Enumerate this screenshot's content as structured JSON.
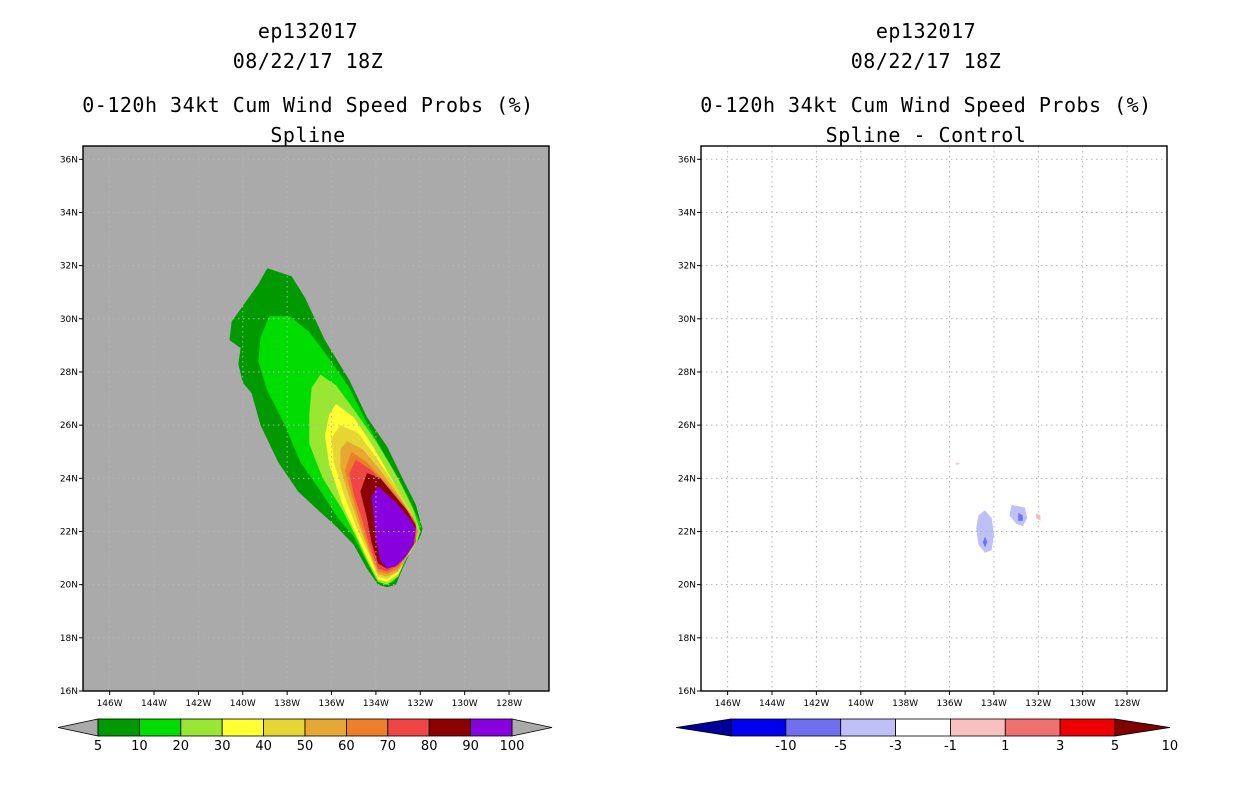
{
  "chart_data": [
    {
      "type": "contour",
      "title_lines": [
        "ep132017",
        "08/22/17 18Z",
        "0-120h 34kt Cum Wind Speed Probs (%)",
        "Spline"
      ],
      "x_ticks": [
        "146W",
        "144W",
        "142W",
        "140W",
        "138W",
        "136W",
        "134W",
        "132W",
        "130W",
        "128W"
      ],
      "x_tick_values": [
        -146,
        -144,
        -142,
        -140,
        -138,
        -136,
        -134,
        -132,
        -130,
        -128
      ],
      "y_ticks": [
        "16N",
        "18N",
        "20N",
        "22N",
        "24N",
        "26N",
        "28N",
        "30N",
        "32N",
        "34N",
        "36N"
      ],
      "y_tick_values": [
        16,
        18,
        20,
        22,
        24,
        26,
        28,
        30,
        32,
        34,
        36
      ],
      "lon_range": [
        -147.2,
        -126.2
      ],
      "lat_range": [
        16.0,
        36.5
      ],
      "background_color": "#aaaaaa",
      "grid": true,
      "colorbar": {
        "labels": [
          "5",
          "10",
          "20",
          "30",
          "40",
          "50",
          "60",
          "70",
          "80",
          "90",
          "100"
        ],
        "colors": [
          "#009900",
          "#00dd00",
          "#99e633",
          "#ffff33",
          "#e6d633",
          "#e6a833",
          "#ed7f2a",
          "#f04545",
          "#8b0000",
          "#8800dd"
        ]
      },
      "contours": [
        {
          "level": 5,
          "color": "#009900",
          "points": [
            [
              -138.9,
              31.9
            ],
            [
              -137.8,
              31.6
            ],
            [
              -137.2,
              30.8
            ],
            [
              -136.3,
              29.2
            ],
            [
              -135.2,
              27.7
            ],
            [
              -134.4,
              26.3
            ],
            [
              -133.5,
              25.2
            ],
            [
              -132.8,
              24.0
            ],
            [
              -132.2,
              23.0
            ],
            [
              -131.9,
              22.1
            ],
            [
              -132.0,
              21.8
            ],
            [
              -132.4,
              21.3
            ],
            [
              -132.8,
              20.6
            ],
            [
              -133.1,
              20.0
            ],
            [
              -133.5,
              19.9
            ],
            [
              -133.9,
              20.0
            ],
            [
              -134.4,
              20.6
            ],
            [
              -135.0,
              21.5
            ],
            [
              -135.8,
              22.2
            ],
            [
              -136.6,
              22.8
            ],
            [
              -137.5,
              23.5
            ],
            [
              -138.4,
              24.6
            ],
            [
              -139.2,
              26.0
            ],
            [
              -139.6,
              27.2
            ],
            [
              -140.0,
              27.6
            ],
            [
              -140.2,
              28.3
            ],
            [
              -140.1,
              28.9
            ],
            [
              -140.6,
              29.2
            ],
            [
              -140.5,
              29.9
            ],
            [
              -139.9,
              30.6
            ],
            [
              -139.3,
              31.3
            ]
          ]
        },
        {
          "level": 10,
          "color": "#00dd00",
          "points": [
            [
              -138.8,
              30.1
            ],
            [
              -137.9,
              30.1
            ],
            [
              -137.0,
              29.5
            ],
            [
              -136.1,
              28.5
            ],
            [
              -135.2,
              27.4
            ],
            [
              -134.3,
              25.9
            ],
            [
              -133.4,
              24.6
            ],
            [
              -132.6,
              23.4
            ],
            [
              -132.0,
              22.3
            ],
            [
              -132.1,
              21.7
            ],
            [
              -132.5,
              21.2
            ],
            [
              -132.9,
              20.5
            ],
            [
              -133.2,
              20.1
            ],
            [
              -133.6,
              20.0
            ],
            [
              -134.0,
              20.2
            ],
            [
              -134.5,
              21.0
            ],
            [
              -135.0,
              21.8
            ],
            [
              -135.7,
              22.5
            ],
            [
              -136.4,
              23.4
            ],
            [
              -137.4,
              24.6
            ],
            [
              -138.1,
              26.0
            ],
            [
              -138.9,
              27.3
            ],
            [
              -139.3,
              28.4
            ],
            [
              -139.2,
              29.3
            ]
          ]
        },
        {
          "level": 20,
          "color": "#99e633",
          "points": [
            [
              -136.5,
              27.9
            ],
            [
              -135.8,
              27.5
            ],
            [
              -135.0,
              26.6
            ],
            [
              -134.0,
              25.4
            ],
            [
              -133.0,
              24.0
            ],
            [
              -132.3,
              22.8
            ],
            [
              -132.0,
              22.0
            ],
            [
              -132.2,
              21.5
            ],
            [
              -132.7,
              20.9
            ],
            [
              -133.0,
              20.3
            ],
            [
              -133.5,
              20.0
            ],
            [
              -133.9,
              20.1
            ],
            [
              -134.4,
              20.9
            ],
            [
              -134.9,
              21.8
            ],
            [
              -135.5,
              22.8
            ],
            [
              -136.4,
              24.0
            ],
            [
              -137.0,
              25.3
            ],
            [
              -137.0,
              26.4
            ],
            [
              -136.9,
              27.4
            ]
          ]
        },
        {
          "level": 30,
          "color": "#ffff33",
          "points": [
            [
              -135.8,
              26.8
            ],
            [
              -135.0,
              26.3
            ],
            [
              -134.2,
              25.3
            ],
            [
              -133.3,
              24.0
            ],
            [
              -132.5,
              22.8
            ],
            [
              -132.1,
              22.0
            ],
            [
              -132.3,
              21.5
            ],
            [
              -132.7,
              20.9
            ],
            [
              -133.0,
              20.4
            ],
            [
              -133.5,
              20.1
            ],
            [
              -133.9,
              20.2
            ],
            [
              -134.4,
              21.0
            ],
            [
              -134.9,
              21.9
            ],
            [
              -135.5,
              23.0
            ],
            [
              -136.1,
              24.5
            ],
            [
              -136.3,
              25.6
            ],
            [
              -136.1,
              26.4
            ]
          ]
        },
        {
          "level": 40,
          "color": "#e6d633",
          "points": [
            [
              -135.6,
              26.0
            ],
            [
              -134.8,
              25.7
            ],
            [
              -134.0,
              24.8
            ],
            [
              -133.1,
              23.7
            ],
            [
              -132.4,
              22.7
            ],
            [
              -132.1,
              22.0
            ],
            [
              -132.3,
              21.5
            ],
            [
              -132.7,
              20.9
            ],
            [
              -133.0,
              20.5
            ],
            [
              -133.5,
              20.2
            ],
            [
              -133.9,
              20.3
            ],
            [
              -134.3,
              21.1
            ],
            [
              -134.8,
              22.0
            ],
            [
              -135.4,
              23.3
            ],
            [
              -135.9,
              24.6
            ],
            [
              -136.0,
              25.5
            ]
          ]
        },
        {
          "level": 50,
          "color": "#e6a833",
          "points": [
            [
              -135.3,
              25.4
            ],
            [
              -134.6,
              25.1
            ],
            [
              -133.8,
              24.3
            ],
            [
              -133.0,
              23.4
            ],
            [
              -132.4,
              22.6
            ],
            [
              -132.1,
              22.0
            ],
            [
              -132.3,
              21.5
            ],
            [
              -132.7,
              20.9
            ],
            [
              -133.0,
              20.5
            ],
            [
              -133.5,
              20.3
            ],
            [
              -133.9,
              20.4
            ],
            [
              -134.3,
              21.2
            ],
            [
              -134.7,
              22.1
            ],
            [
              -135.2,
              23.3
            ],
            [
              -135.6,
              24.4
            ],
            [
              -135.6,
              25.1
            ]
          ]
        },
        {
          "level": 60,
          "color": "#ed7f2a",
          "points": [
            [
              -135.1,
              25.0
            ],
            [
              -134.4,
              24.6
            ],
            [
              -133.6,
              23.9
            ],
            [
              -132.8,
              23.1
            ],
            [
              -132.3,
              22.5
            ],
            [
              -132.1,
              22.0
            ],
            [
              -132.3,
              21.5
            ],
            [
              -132.7,
              21.0
            ],
            [
              -133.0,
              20.6
            ],
            [
              -133.5,
              20.4
            ],
            [
              -133.9,
              20.5
            ],
            [
              -134.3,
              21.3
            ],
            [
              -134.7,
              22.3
            ],
            [
              -135.1,
              23.4
            ],
            [
              -135.4,
              24.3
            ]
          ]
        },
        {
          "level": 70,
          "color": "#f04545",
          "points": [
            [
              -134.9,
              24.7
            ],
            [
              -134.2,
              24.3
            ],
            [
              -133.4,
              23.6
            ],
            [
              -132.7,
              22.9
            ],
            [
              -132.2,
              22.3
            ],
            [
              -132.2,
              21.6
            ],
            [
              -132.6,
              21.1
            ],
            [
              -133.0,
              20.7
            ],
            [
              -133.5,
              20.5
            ],
            [
              -133.9,
              20.6
            ],
            [
              -134.3,
              21.5
            ],
            [
              -134.6,
              22.4
            ],
            [
              -135.0,
              23.4
            ],
            [
              -135.2,
              24.2
            ]
          ]
        },
        {
          "level": 80,
          "color": "#8b0000",
          "points": [
            [
              -134.4,
              24.2
            ],
            [
              -133.8,
              24.0
            ],
            [
              -133.2,
              23.4
            ],
            [
              -132.6,
              22.8
            ],
            [
              -132.2,
              22.2
            ],
            [
              -132.3,
              21.6
            ],
            [
              -132.7,
              21.1
            ],
            [
              -133.1,
              20.8
            ],
            [
              -133.5,
              20.6
            ],
            [
              -133.9,
              20.8
            ],
            [
              -134.2,
              21.6
            ],
            [
              -134.4,
              22.5
            ],
            [
              -134.7,
              23.5
            ]
          ]
        },
        {
          "level": 90,
          "color": "#8800dd",
          "points": [
            [
              -133.9,
              23.7
            ],
            [
              -133.5,
              23.4
            ],
            [
              -133.0,
              23.0
            ],
            [
              -132.5,
              22.5
            ],
            [
              -132.2,
              22.1
            ],
            [
              -132.3,
              21.5
            ],
            [
              -132.7,
              21.0
            ],
            [
              -133.1,
              20.7
            ],
            [
              -133.5,
              20.6
            ],
            [
              -133.8,
              20.9
            ],
            [
              -134.0,
              21.7
            ],
            [
              -134.1,
              22.6
            ],
            [
              -134.2,
              23.3
            ]
          ]
        }
      ]
    },
    {
      "type": "contour",
      "title_lines": [
        "ep132017",
        "08/22/17 18Z",
        "0-120h 34kt Cum Wind Speed Probs (%)",
        "Spline - Control"
      ],
      "x_ticks": [
        "146W",
        "144W",
        "142W",
        "140W",
        "138W",
        "136W",
        "134W",
        "132W",
        "130W",
        "128W"
      ],
      "x_tick_values": [
        -146,
        -144,
        -142,
        -140,
        -138,
        -136,
        -134,
        -132,
        -130,
        -128
      ],
      "y_ticks": [
        "16N",
        "18N",
        "20N",
        "22N",
        "24N",
        "26N",
        "28N",
        "30N",
        "32N",
        "34N",
        "36N"
      ],
      "y_tick_values": [
        16,
        18,
        20,
        22,
        24,
        26,
        28,
        30,
        32,
        34,
        36
      ],
      "lon_range": [
        -147.2,
        -126.2
      ],
      "lat_range": [
        16.0,
        36.5
      ],
      "background_color": "#ffffff",
      "grid": true,
      "colorbar": {
        "labels": [
          "-10",
          "-5",
          "-3",
          "-1",
          "1",
          "3",
          "5",
          "10"
        ],
        "colors": [
          "#000099",
          "#0000ee",
          "#6f6ff0",
          "#c0c0f8",
          "#ffffff",
          "#f8c0c0",
          "#f06f6f",
          "#ee0000",
          "#800000"
        ]
      },
      "contours": [
        {
          "level": -1,
          "color": "#c0c0f8",
          "points": [
            [
              -134.4,
              22.8
            ],
            [
              -134.1,
              22.5
            ],
            [
              -134.0,
              21.9
            ],
            [
              -134.1,
              21.3
            ],
            [
              -134.4,
              21.2
            ],
            [
              -134.7,
              21.5
            ],
            [
              -134.8,
              22.1
            ],
            [
              -134.7,
              22.6
            ]
          ]
        },
        {
          "level": -3,
          "color": "#6f6ff0",
          "points": [
            [
              -134.4,
              21.8
            ],
            [
              -134.3,
              21.6
            ],
            [
              -134.4,
              21.4
            ],
            [
              -134.5,
              21.6
            ]
          ]
        },
        {
          "level": -1,
          "color": "#c0c0f8",
          "points": [
            [
              -133.2,
              23.0
            ],
            [
              -132.6,
              22.9
            ],
            [
              -132.5,
              22.5
            ],
            [
              -132.7,
              22.2
            ],
            [
              -133.0,
              22.3
            ],
            [
              -133.3,
              22.6
            ]
          ]
        },
        {
          "level": -3,
          "color": "#6f6ff0",
          "points": [
            [
              -132.9,
              22.7
            ],
            [
              -132.7,
              22.6
            ],
            [
              -132.7,
              22.4
            ],
            [
              -132.9,
              22.4
            ]
          ]
        },
        {
          "level": 1,
          "color": "#f8c0c0",
          "points": [
            [
              -132.1,
              22.7
            ],
            [
              -131.9,
              22.6
            ],
            [
              -131.9,
              22.4
            ],
            [
              -132.1,
              22.5
            ]
          ]
        },
        {
          "level": 1,
          "color": "#f8c0c0",
          "points": [
            [
              -135.7,
              24.6
            ],
            [
              -135.5,
              24.55
            ],
            [
              -135.7,
              24.5
            ]
          ]
        }
      ]
    }
  ]
}
